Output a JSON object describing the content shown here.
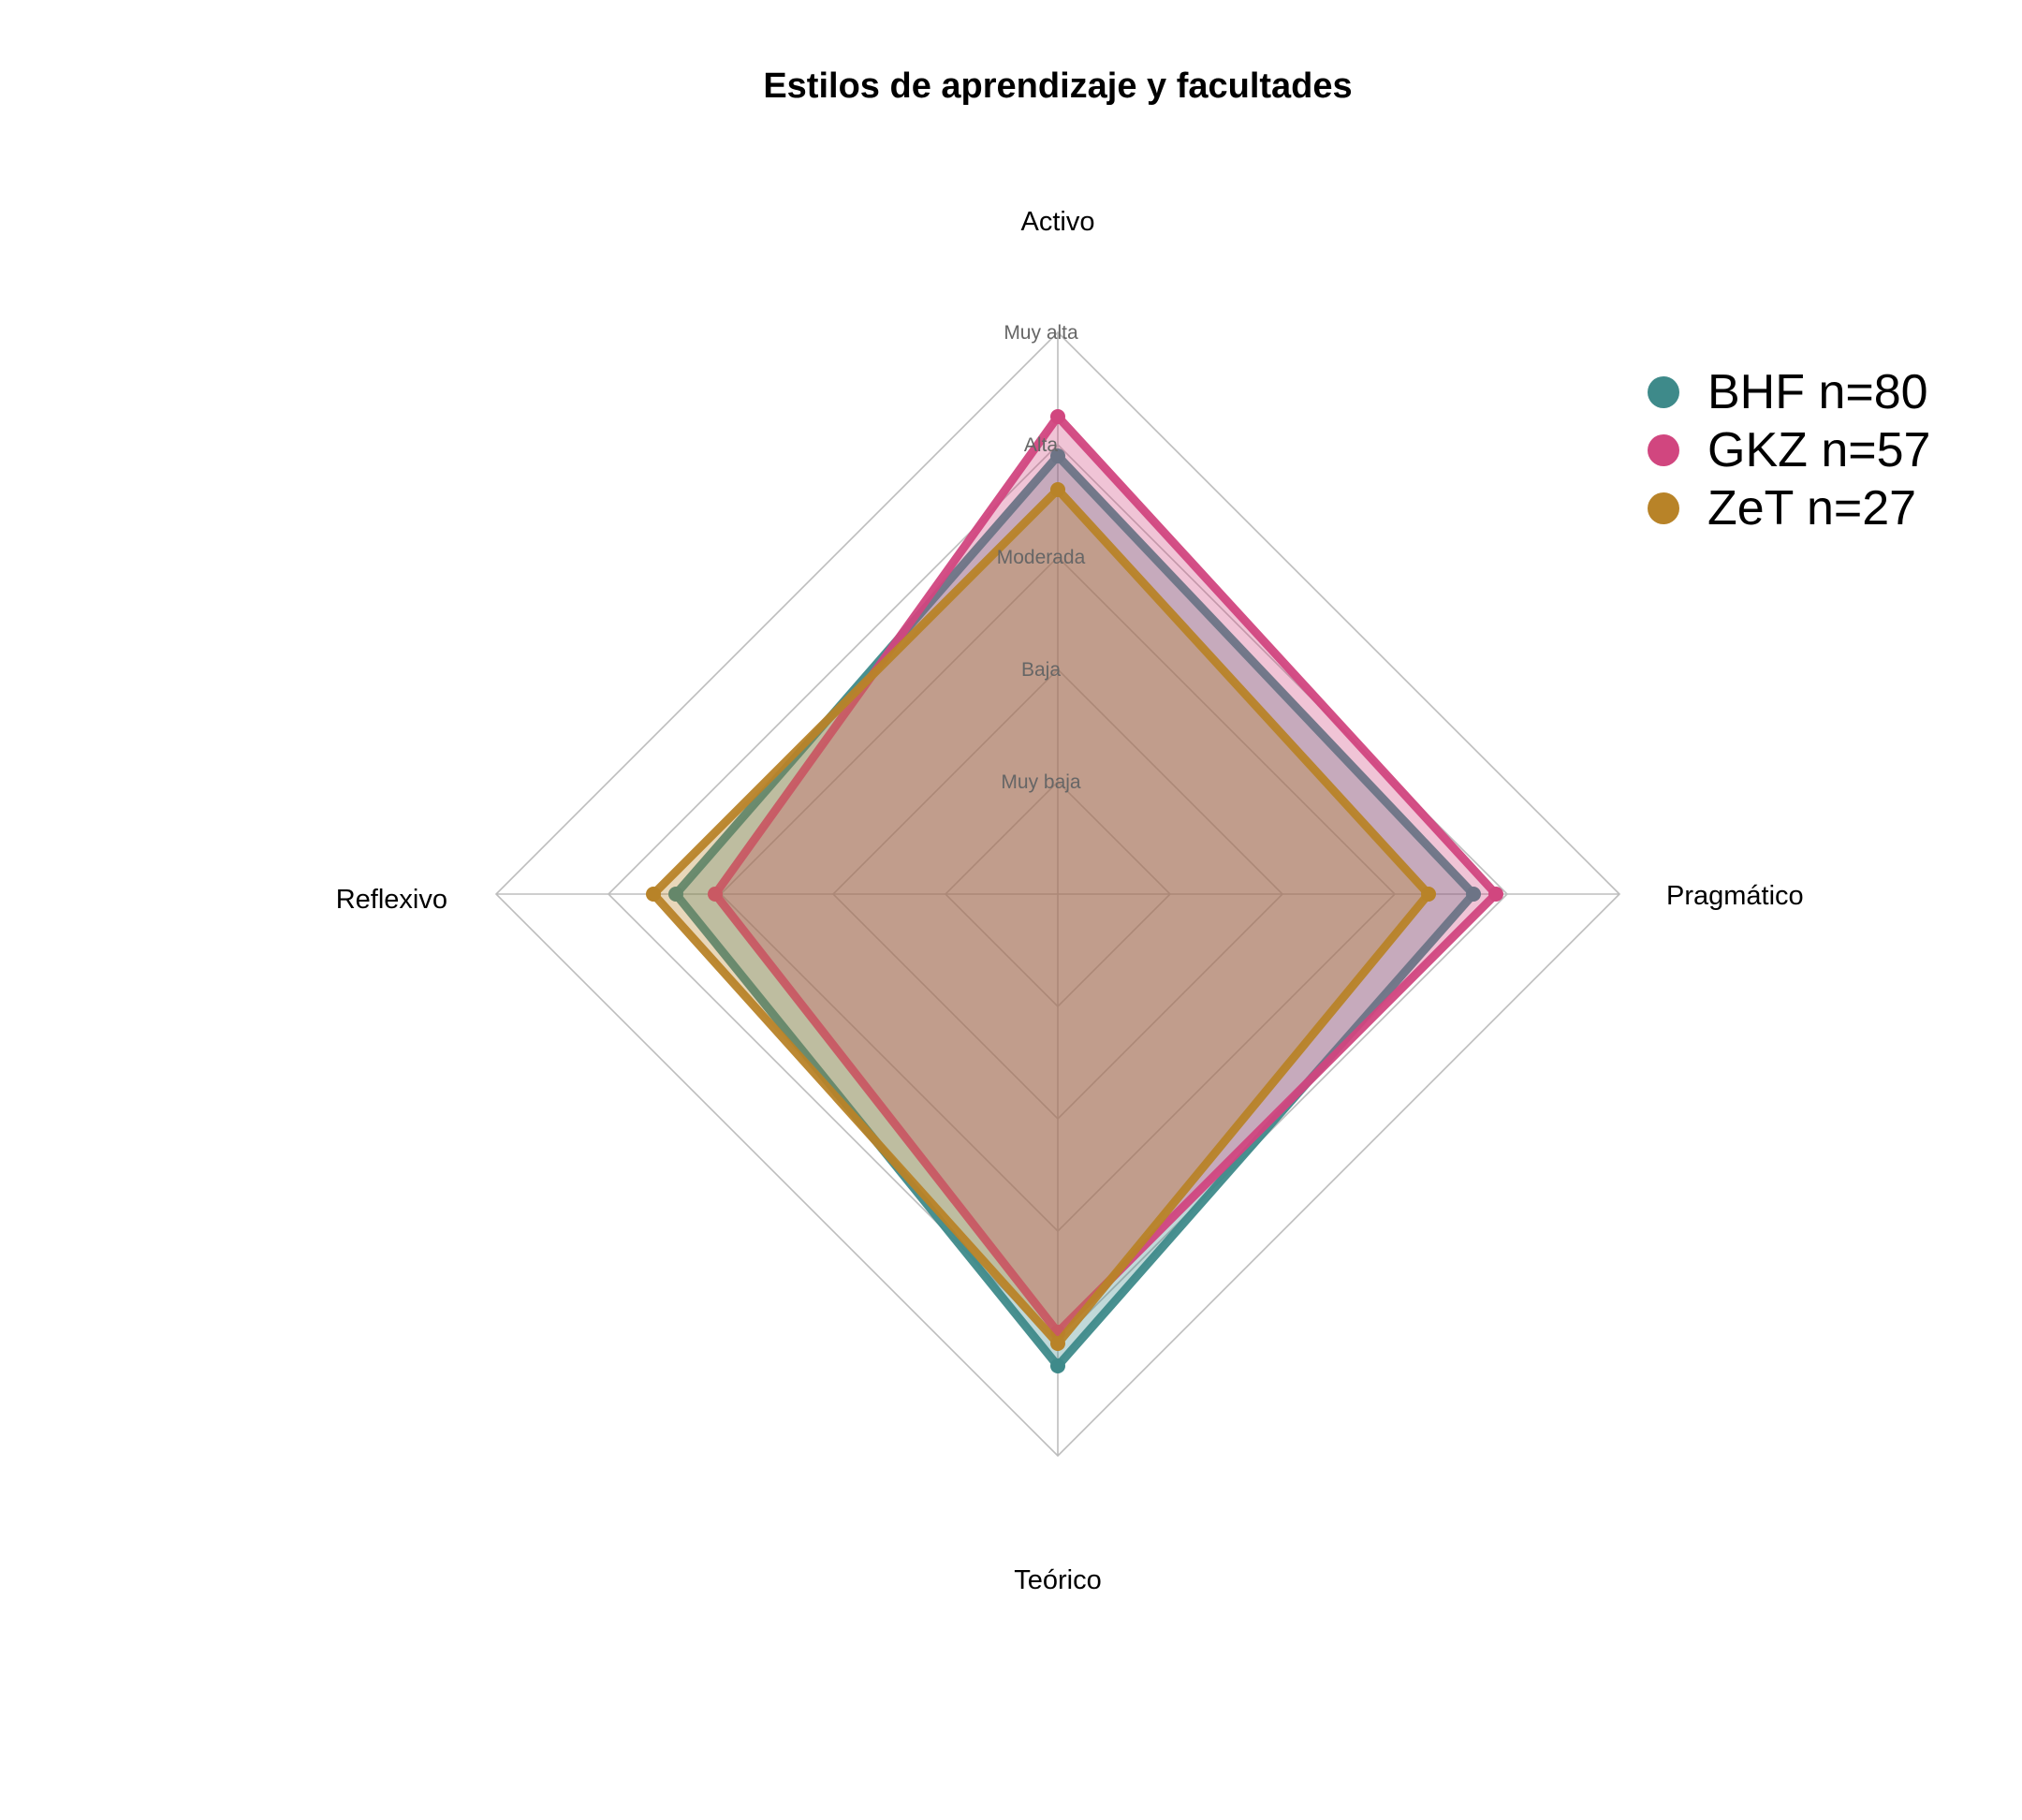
{
  "chart_data": {
    "type": "radar",
    "title": "Estilos de aprendizaje y facultades",
    "axes": [
      "Activo",
      "Pragmático",
      "Teórico",
      "Reflexivo"
    ],
    "levels": [
      "Muy baja",
      "Baja",
      "Moderada",
      "Alta",
      "Muy alta"
    ],
    "range": [
      0,
      5
    ],
    "series": [
      {
        "name": "BHF n=80",
        "color": "#3e8a8a",
        "values": [
          3.9,
          3.7,
          4.2,
          3.4
        ]
      },
      {
        "name": "GKZ n=57",
        "color": "#d1467f",
        "values": [
          4.25,
          3.9,
          3.9,
          3.05
        ]
      },
      {
        "name": "ZeT n=27",
        "color": "#b88328",
        "values": [
          3.6,
          3.3,
          4.0,
          3.6
        ]
      }
    ],
    "legend_position": "top-right",
    "grid": true
  }
}
